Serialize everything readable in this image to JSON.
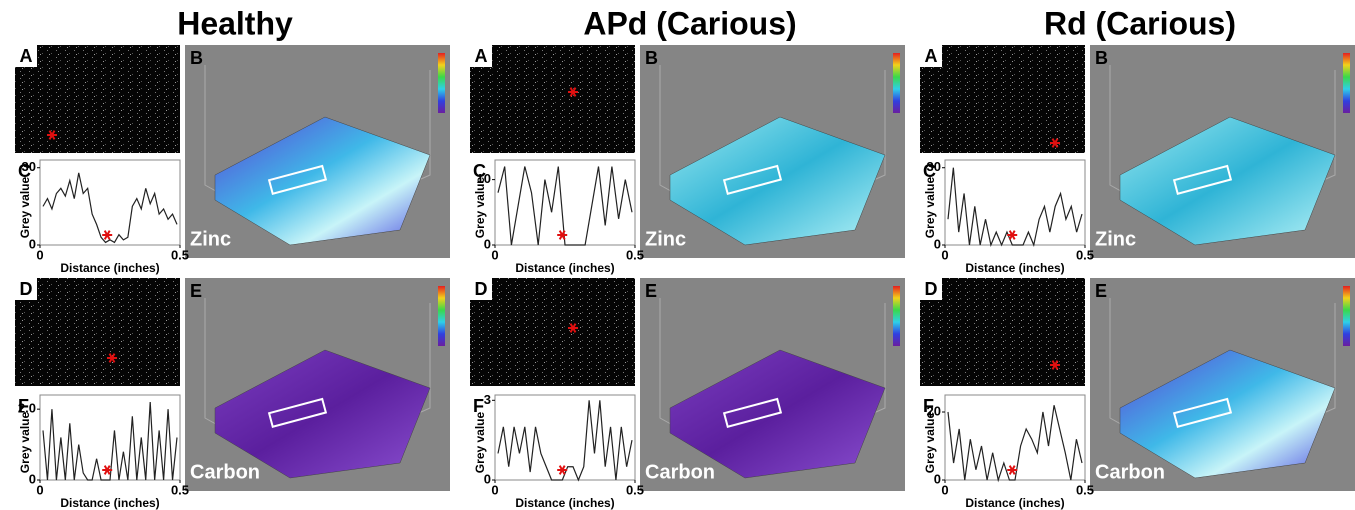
{
  "panels": [
    {
      "title": "Healthy",
      "labels": {
        "a": "A",
        "b": "B",
        "c": "C",
        "d": "D",
        "e": "E",
        "f": "F"
      },
      "zinc": "Zinc",
      "carbon": "Carbon",
      "profiles": [
        {
          "ylabel": "Grey value",
          "xlabel": "Distance (inches)",
          "ylim": [
            0,
            33
          ],
          "yticks": [
            0,
            30
          ],
          "xlim": [
            0,
            0.5
          ],
          "xticks": [
            0,
            0.5
          ],
          "values": [
            15,
            18,
            14,
            20,
            22,
            19,
            25,
            18,
            28,
            20,
            22,
            12,
            8,
            3,
            1,
            2,
            1,
            4,
            2,
            3,
            15,
            18,
            14,
            22,
            16,
            20,
            12,
            14,
            10,
            12,
            8
          ]
        },
        {
          "ylabel": "Grey value",
          "xlabel": "Distance (inches)",
          "ylim": [
            0,
            2.4
          ],
          "yticks": [
            0,
            {
              "value": 2,
              "label": "2.0"
            }
          ],
          "xlim": [
            0,
            0.5
          ],
          "xticks": [
            0,
            0.5
          ],
          "values": [
            1.4,
            0,
            2,
            0,
            1.2,
            0,
            1.6,
            0,
            1,
            0.2,
            0,
            0,
            0.6,
            0,
            0,
            0,
            1.4,
            0,
            0.8,
            0,
            1.8,
            0,
            1.2,
            0,
            2.2,
            0,
            1.4,
            0,
            2,
            0,
            1.2
          ]
        }
      ]
    },
    {
      "title": "APd (Carious)",
      "labels": {
        "a": "A",
        "b": "B",
        "c": "C",
        "d": "D",
        "e": "E",
        "f": "F"
      },
      "zinc": "Zinc",
      "carbon": "Carbon",
      "profiles": [
        {
          "ylabel": "Grey value",
          "xlabel": "Distance (inches)",
          "ylim": [
            0,
            13
          ],
          "yticks": [
            0,
            10
          ],
          "xlim": [
            0,
            0.5
          ],
          "xticks": [
            0,
            0.5
          ],
          "values": [
            8,
            12,
            0,
            6,
            12,
            8,
            0,
            10,
            5,
            12,
            0,
            0,
            0,
            0,
            6,
            12,
            3,
            12,
            4,
            10,
            5
          ]
        },
        {
          "ylabel": "Grey value",
          "xlabel": "Distance (inches)",
          "ylim": [
            0,
            3.2
          ],
          "yticks": [
            0,
            3
          ],
          "xlim": [
            0,
            0.5
          ],
          "xticks": [
            0,
            0.5
          ],
          "values": [
            1,
            2,
            0.5,
            2,
            1,
            2,
            0.3,
            2,
            1,
            0.5,
            0,
            0,
            0,
            0.5,
            0.5,
            0,
            0.5,
            3,
            1,
            3,
            0.5,
            2,
            0,
            2,
            0.5,
            1.5
          ]
        }
      ]
    },
    {
      "title": "Rd (Carious)",
      "labels": {
        "a": "A",
        "b": "B",
        "c": "C",
        "d": "D",
        "e": "E",
        "f": "F"
      },
      "zinc": "Zinc",
      "carbon": "Carbon",
      "profiles": [
        {
          "ylabel": "Grey value",
          "xlabel": "Distance (inches)",
          "ylim": [
            0,
            33
          ],
          "yticks": [
            0,
            30
          ],
          "xlim": [
            0,
            0.5
          ],
          "xticks": [
            0,
            0.5
          ],
          "values": [
            10,
            30,
            5,
            20,
            0,
            15,
            0,
            10,
            0,
            5,
            0,
            5,
            0,
            0,
            0,
            5,
            0,
            10,
            15,
            5,
            15,
            20,
            10,
            15,
            5,
            12
          ]
        },
        {
          "ylabel": "Grey value",
          "xlabel": "Distance (inches)",
          "ylim": [
            0,
            25
          ],
          "yticks": [
            0,
            20
          ],
          "xlim": [
            0,
            0.5
          ],
          "xticks": [
            0,
            0.5
          ],
          "values": [
            20,
            5,
            15,
            0,
            12,
            3,
            10,
            0,
            8,
            0,
            5,
            0,
            0,
            10,
            15,
            12,
            8,
            20,
            10,
            22,
            15,
            8,
            0,
            12,
            5
          ]
        }
      ]
    }
  ]
}
